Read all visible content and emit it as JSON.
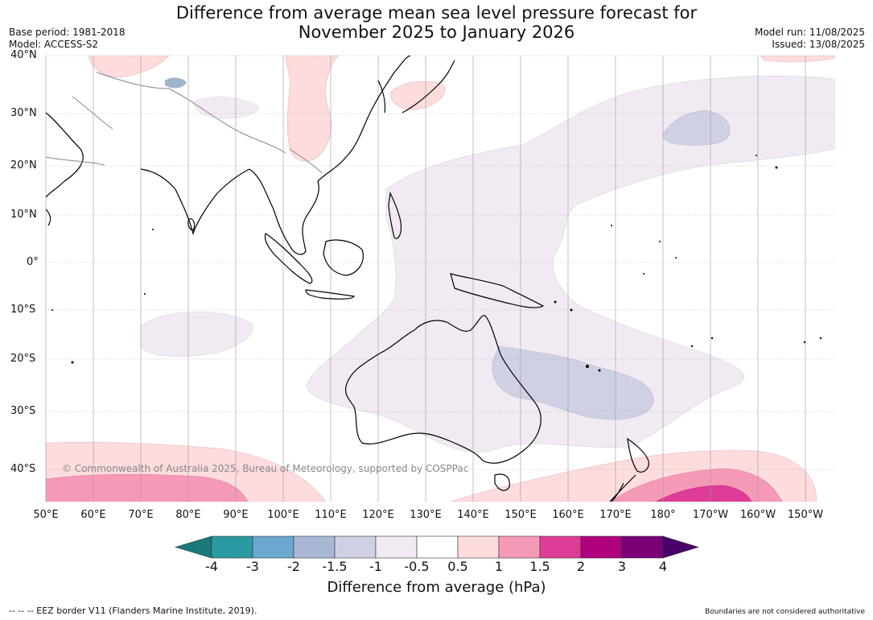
{
  "header": {
    "title_line1": "Difference from average mean sea level pressure forecast for",
    "title_line2": "November 2025 to January 2026",
    "base_period": "Base period: 1981-2018",
    "model": "Model: ACCESS-S2",
    "model_run": "Model run: 11/08/2025",
    "issued": "Issued: 13/08/2025"
  },
  "map": {
    "lat_labels": [
      "40°N",
      "30°N",
      "20°N",
      "10°N",
      "0°",
      "10°S",
      "20°S",
      "30°S",
      "40°S"
    ],
    "lon_labels": [
      "50°E",
      "60°E",
      "70°E",
      "80°E",
      "90°E",
      "100°E",
      "110°E",
      "120°E",
      "130°E",
      "140°E",
      "150°E",
      "160°E",
      "170°E",
      "180°",
      "170°W",
      "160°W",
      "150°W"
    ],
    "copyright": "© Commonwealth of Australia 2025, Bureau of Meteorology, supported by COSPPac",
    "land_color": "#000000",
    "border_color": "#888888"
  },
  "colorbar": {
    "ticks": [
      "-4",
      "-3",
      "-2",
      "-1.5",
      "-1",
      "-0.5",
      "0.5",
      "1",
      "1.5",
      "2",
      "3",
      "4"
    ],
    "colors": [
      "#1a7a7a",
      "#2a9aa0",
      "#6aa8d0",
      "#a8b8d4",
      "#d0d0e4",
      "#f2eaf3",
      "#ffffff",
      "#fcdcdc",
      "#f59ab6",
      "#de3c96",
      "#b0007e",
      "#7a0078",
      "#4a006a"
    ],
    "label": "Difference from average (hPa)"
  },
  "footer": {
    "eez_legend": "--  --  -- EEZ border V11 (Flanders Marine Institute, 2019).",
    "disclaimer": "Boundaries are not considered authoritative"
  }
}
